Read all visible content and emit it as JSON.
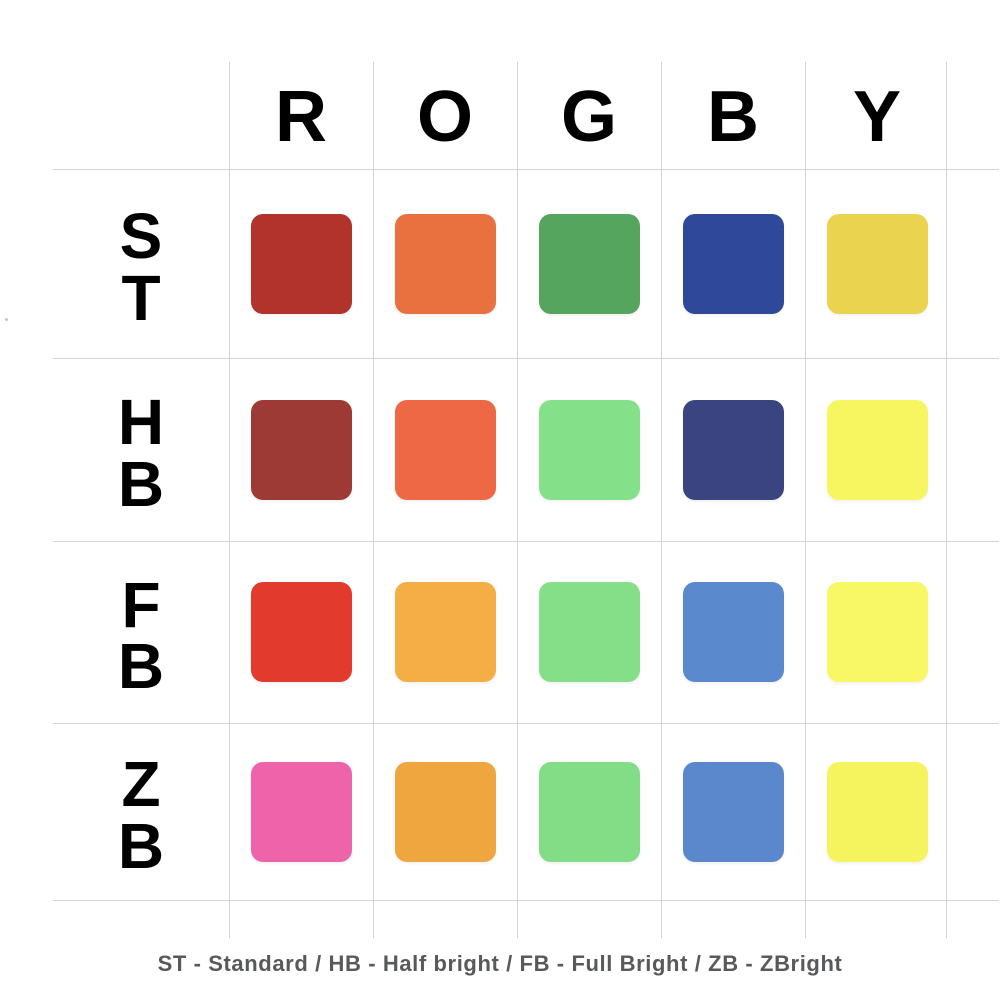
{
  "caption": "ST - Standard / HB - Half bright / FB - Full Bright / ZB - ZBright",
  "chart_data": {
    "type": "table",
    "title": "",
    "description": "Color swatch matrix: brightness variants (rows) of base colors (columns)",
    "columns": [
      "R",
      "O",
      "G",
      "B",
      "Y"
    ],
    "rows": [
      "ST",
      "HB",
      "FB",
      "ZB"
    ],
    "row_meanings": {
      "ST": "Standard",
      "HB": "Half bright",
      "FB": "Full Bright",
      "ZB": "ZBright"
    },
    "grid_color": "#d3d3d3",
    "text_color": "#000000",
    "caption_color": "#58595b",
    "swatches": [
      {
        "row": "ST",
        "colors": [
          "#b2332c",
          "#e8713f",
          "#56a55f",
          "#2f4899",
          "#ead34f"
        ]
      },
      {
        "row": "HB",
        "colors": [
          "#9d3a36",
          "#ee6845",
          "#84e189",
          "#394480",
          "#f8f660"
        ]
      },
      {
        "row": "FB",
        "colors": [
          "#e23a2c",
          "#f4ae45",
          "#85de88",
          "#5b89ce",
          "#f8f766"
        ]
      },
      {
        "row": "ZB",
        "colors": [
          "#ee63a9",
          "#f0a63e",
          "#83dd86",
          "#5b88cc",
          "#f6f45e"
        ]
      }
    ]
  }
}
